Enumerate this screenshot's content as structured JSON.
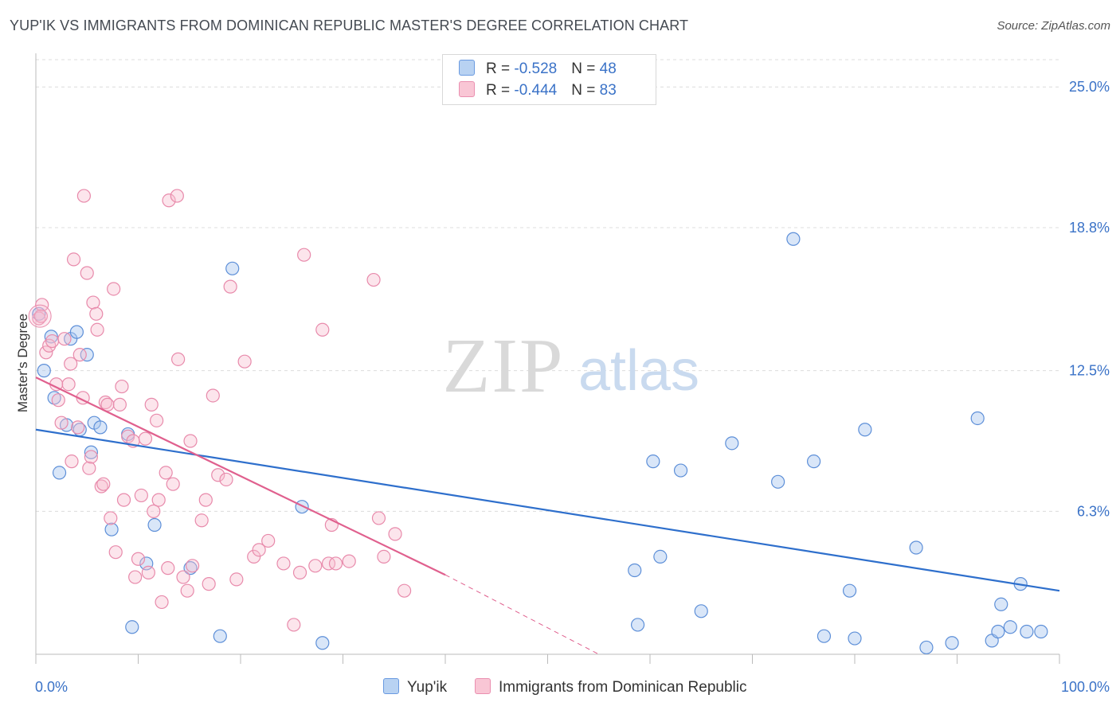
{
  "title": "YUP'IK VS IMMIGRANTS FROM DOMINICAN REPUBLIC MASTER'S DEGREE CORRELATION CHART",
  "source": "Source: ZipAtlas.com",
  "watermark": {
    "zip": "ZIP",
    "atlas": "atlas"
  },
  "legend": {
    "rows": [
      {
        "r_label": "R = ",
        "r_value": "-0.528",
        "n_label": "N = ",
        "n_value": "48",
        "fill": "#b8d2f2",
        "stroke": "#6a9ae0"
      },
      {
        "r_label": "R = ",
        "r_value": "-0.444",
        "n_label": "N = ",
        "n_value": "83",
        "fill": "#f9c6d5",
        "stroke": "#ea8fb0"
      }
    ]
  },
  "bottom_legend": [
    {
      "label": "Yup'ik",
      "fill": "#b8d2f2",
      "stroke": "#6a9ae0"
    },
    {
      "label": "Immigrants from Dominican Republic",
      "fill": "#f9c6d5",
      "stroke": "#ea8fb0"
    }
  ],
  "colors": {
    "blue_point_fill": "rgba(170,200,240,0.45)",
    "blue_point_stroke": "#5d8fd8",
    "pink_point_fill": "rgba(248,190,208,0.40)",
    "pink_point_stroke": "#e88aab",
    "blue_line": "#2e6fcc",
    "pink_line": "#e0608e",
    "tick_label": "#3a72c7",
    "grid": "#dcdcdc"
  },
  "chart_data": {
    "type": "scatter",
    "ylabel": "Master's Degree",
    "xlabel": "",
    "x_tick_labels": [
      "0.0%",
      "100.0%"
    ],
    "y_tick_labels": [
      "6.3%",
      "12.5%",
      "18.8%",
      "25.0%"
    ],
    "y_ticks": [
      6.3,
      12.5,
      18.8,
      25.0
    ],
    "xlim": [
      0,
      100
    ],
    "ylim": [
      0,
      26.2
    ],
    "grid": true,
    "series": [
      {
        "name": "Yup'ik",
        "color": "blue",
        "points": [
          [
            0.3,
            15.0
          ],
          [
            0.8,
            12.5
          ],
          [
            1.5,
            14.0
          ],
          [
            1.8,
            11.3
          ],
          [
            2.3,
            8.0
          ],
          [
            3.0,
            10.1
          ],
          [
            3.4,
            13.9
          ],
          [
            4.0,
            14.2
          ],
          [
            4.3,
            9.9
          ],
          [
            5.0,
            13.2
          ],
          [
            5.4,
            8.9
          ],
          [
            5.7,
            10.2
          ],
          [
            6.3,
            10.0
          ],
          [
            7.4,
            5.5
          ],
          [
            9.0,
            9.7
          ],
          [
            9.4,
            1.2
          ],
          [
            10.8,
            4.0
          ],
          [
            11.6,
            5.7
          ],
          [
            15.1,
            3.8
          ],
          [
            18.0,
            0.8
          ],
          [
            19.2,
            17.0
          ],
          [
            26.0,
            6.5
          ],
          [
            28.0,
            0.5
          ],
          [
            58.5,
            3.7
          ],
          [
            58.8,
            1.3
          ],
          [
            60.3,
            8.5
          ],
          [
            61.0,
            4.3
          ],
          [
            63.0,
            8.1
          ],
          [
            65.0,
            1.9
          ],
          [
            68.0,
            9.3
          ],
          [
            72.5,
            7.6
          ],
          [
            74.0,
            18.3
          ],
          [
            76.0,
            8.5
          ],
          [
            77.0,
            0.8
          ],
          [
            79.5,
            2.8
          ],
          [
            80.0,
            0.7
          ],
          [
            81.0,
            9.9
          ],
          [
            86.0,
            4.7
          ],
          [
            87.0,
            0.3
          ],
          [
            89.5,
            0.5
          ],
          [
            92.0,
            10.4
          ],
          [
            93.4,
            0.6
          ],
          [
            94.0,
            1.0
          ],
          [
            94.3,
            2.2
          ],
          [
            95.2,
            1.2
          ],
          [
            96.2,
            3.1
          ],
          [
            96.8,
            1.0
          ],
          [
            98.2,
            1.0
          ]
        ]
      },
      {
        "name": "Immigrants from Dominican Republic",
        "color": "pink",
        "points": [
          [
            0.3,
            14.8
          ],
          [
            0.6,
            15.4
          ],
          [
            1.0,
            13.3
          ],
          [
            1.3,
            13.6
          ],
          [
            1.6,
            13.8
          ],
          [
            2.0,
            11.9
          ],
          [
            2.2,
            11.2
          ],
          [
            2.5,
            10.2
          ],
          [
            2.8,
            13.9
          ],
          [
            3.2,
            11.9
          ],
          [
            3.4,
            12.8
          ],
          [
            3.5,
            8.5
          ],
          [
            3.7,
            17.4
          ],
          [
            4.1,
            10.0
          ],
          [
            4.3,
            13.2
          ],
          [
            4.6,
            11.3
          ],
          [
            4.7,
            20.2
          ],
          [
            5.0,
            16.8
          ],
          [
            5.2,
            8.2
          ],
          [
            5.4,
            8.7
          ],
          [
            5.6,
            15.5
          ],
          [
            5.9,
            15.0
          ],
          [
            6.0,
            14.3
          ],
          [
            6.4,
            7.4
          ],
          [
            6.6,
            7.5
          ],
          [
            6.8,
            11.1
          ],
          [
            7.0,
            11.0
          ],
          [
            7.3,
            6.0
          ],
          [
            7.6,
            16.1
          ],
          [
            7.8,
            4.5
          ],
          [
            8.2,
            11.0
          ],
          [
            8.4,
            11.8
          ],
          [
            8.6,
            6.8
          ],
          [
            9.0,
            9.6
          ],
          [
            9.5,
            9.4
          ],
          [
            9.7,
            3.4
          ],
          [
            10.0,
            4.2
          ],
          [
            10.3,
            7.0
          ],
          [
            10.7,
            9.5
          ],
          [
            11.0,
            3.6
          ],
          [
            11.3,
            11.0
          ],
          [
            11.5,
            6.3
          ],
          [
            11.8,
            10.3
          ],
          [
            12.0,
            6.8
          ],
          [
            12.3,
            2.3
          ],
          [
            12.7,
            8.0
          ],
          [
            12.9,
            3.8
          ],
          [
            13.0,
            20.0
          ],
          [
            13.4,
            7.5
          ],
          [
            13.8,
            20.2
          ],
          [
            13.9,
            13.0
          ],
          [
            14.4,
            3.4
          ],
          [
            14.8,
            2.8
          ],
          [
            15.1,
            9.4
          ],
          [
            15.3,
            3.9
          ],
          [
            16.2,
            5.9
          ],
          [
            16.6,
            6.8
          ],
          [
            16.9,
            3.1
          ],
          [
            17.3,
            11.4
          ],
          [
            17.8,
            7.9
          ],
          [
            18.6,
            7.7
          ],
          [
            19.0,
            16.2
          ],
          [
            19.6,
            3.3
          ],
          [
            20.4,
            12.9
          ],
          [
            21.3,
            4.3
          ],
          [
            21.8,
            4.6
          ],
          [
            22.7,
            5.0
          ],
          [
            24.2,
            4.0
          ],
          [
            25.2,
            1.3
          ],
          [
            25.8,
            3.6
          ],
          [
            26.2,
            17.6
          ],
          [
            27.3,
            3.9
          ],
          [
            28.0,
            14.3
          ],
          [
            28.6,
            4.0
          ],
          [
            28.9,
            5.7
          ],
          [
            29.3,
            4.0
          ],
          [
            30.6,
            4.1
          ],
          [
            33.0,
            16.5
          ],
          [
            33.5,
            6.0
          ],
          [
            34.0,
            4.3
          ],
          [
            35.1,
            5.3
          ],
          [
            36.0,
            2.8
          ],
          [
            0.5,
            14.9
          ]
        ]
      }
    ],
    "trendlines": [
      {
        "series": "Yup'ik",
        "x": [
          0,
          100
        ],
        "y": [
          9.9,
          2.8
        ],
        "style": "solid"
      },
      {
        "series": "Immigrants from Dominican Republic",
        "x": [
          0,
          40
        ],
        "y": [
          12.2,
          3.5
        ],
        "style": "solid"
      },
      {
        "series": "Immigrants from Dominican Republic",
        "x": [
          40,
          55
        ],
        "y": [
          3.5,
          0.0
        ],
        "style": "dashed"
      }
    ]
  }
}
